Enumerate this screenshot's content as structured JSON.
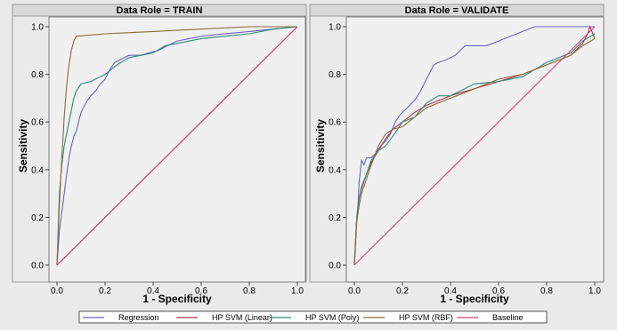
{
  "chart_data": [
    {
      "type": "line",
      "title": "Data Role = TRAIN",
      "xlabel": "1 - Specificity",
      "ylabel": "Sensitivity",
      "xlim": [
        0,
        1
      ],
      "ylim": [
        0,
        1
      ],
      "xticks": [
        "0.0",
        "0.2",
        "0.4",
        "0.6",
        "0.8",
        "1.0"
      ],
      "yticks": [
        "0.0",
        "0.2",
        "0.4",
        "0.6",
        "0.8",
        "1.0"
      ],
      "grid": false,
      "series": [
        {
          "name": "Regression",
          "color": "#6a64c2",
          "x": [
            0,
            0.01,
            0.02,
            0.03,
            0.04,
            0.05,
            0.06,
            0.07,
            0.08,
            0.09,
            0.1,
            0.12,
            0.14,
            0.16,
            0.18,
            0.2,
            0.22,
            0.24,
            0.26,
            0.28,
            0.3,
            0.32,
            0.35,
            0.38,
            0.42,
            0.46,
            0.5,
            0.55,
            0.6,
            0.7,
            0.8,
            0.9,
            1.0
          ],
          "y": [
            0,
            0.14,
            0.22,
            0.3,
            0.38,
            0.45,
            0.5,
            0.54,
            0.56,
            0.6,
            0.64,
            0.68,
            0.71,
            0.73,
            0.76,
            0.78,
            0.82,
            0.85,
            0.86,
            0.87,
            0.88,
            0.88,
            0.88,
            0.89,
            0.9,
            0.92,
            0.94,
            0.95,
            0.96,
            0.97,
            0.98,
            0.99,
            1.0
          ]
        },
        {
          "name": "HP SVM (Linear)",
          "color": "#b5364a",
          "x": [
            0,
            1
          ],
          "y": [
            0,
            1
          ]
        },
        {
          "name": "HP SVM (Poly)",
          "color": "#2e8b7a",
          "x": [
            0,
            0.01,
            0.02,
            0.03,
            0.04,
            0.05,
            0.06,
            0.07,
            0.08,
            0.1,
            0.14,
            0.2,
            0.25,
            0.3,
            0.35,
            0.4,
            0.45,
            0.5,
            0.6,
            0.7,
            0.8,
            0.9,
            1.0
          ],
          "y": [
            0,
            0.3,
            0.42,
            0.5,
            0.55,
            0.6,
            0.65,
            0.7,
            0.73,
            0.76,
            0.77,
            0.8,
            0.84,
            0.87,
            0.88,
            0.89,
            0.92,
            0.93,
            0.95,
            0.96,
            0.97,
            0.99,
            1.0
          ]
        },
        {
          "name": "HP SVM (RBF)",
          "color": "#8b6a3e",
          "x": [
            0,
            0.01,
            0.02,
            0.03,
            0.04,
            0.05,
            0.06,
            0.07,
            0.08,
            0.2,
            0.4,
            0.6,
            0.8,
            1.0
          ],
          "y": [
            0,
            0.25,
            0.45,
            0.62,
            0.75,
            0.84,
            0.9,
            0.94,
            0.96,
            0.97,
            0.98,
            0.99,
            1.0,
            1.0
          ]
        },
        {
          "name": "Baseline",
          "color": "#d9406f",
          "x": [
            0,
            1
          ],
          "y": [
            0,
            1
          ]
        }
      ]
    },
    {
      "type": "line",
      "title": "Data Role = VALIDATE",
      "xlabel": "1 - Specificity",
      "ylabel": "Sensitivity",
      "xlim": [
        0,
        1
      ],
      "ylim": [
        0,
        1
      ],
      "xticks": [
        "0.0",
        "0.2",
        "0.4",
        "0.6",
        "0.8",
        "1.0"
      ],
      "yticks": [
        "0.0",
        "0.2",
        "0.4",
        "0.6",
        "0.8",
        "1.0"
      ],
      "grid": false,
      "series": [
        {
          "name": "Regression",
          "color": "#6a64c2",
          "x": [
            0,
            0.01,
            0.015,
            0.02,
            0.03,
            0.04,
            0.05,
            0.07,
            0.09,
            0.11,
            0.13,
            0.15,
            0.17,
            0.19,
            0.21,
            0.23,
            0.25,
            0.27,
            0.29,
            0.31,
            0.33,
            0.35,
            0.38,
            0.42,
            0.46,
            0.5,
            0.55,
            0.6,
            0.65,
            0.7,
            0.75,
            0.8,
            0.85,
            0.9,
            0.95,
            0.98,
            1.0
          ],
          "y": [
            0,
            0.2,
            0.25,
            0.35,
            0.44,
            0.42,
            0.45,
            0.45,
            0.47,
            0.5,
            0.52,
            0.55,
            0.6,
            0.63,
            0.65,
            0.67,
            0.69,
            0.72,
            0.76,
            0.8,
            0.84,
            0.85,
            0.86,
            0.88,
            0.92,
            0.92,
            0.92,
            0.94,
            0.96,
            0.98,
            1.0,
            1.0,
            1.0,
            1.0,
            1.0,
            1.0,
            1.0
          ]
        },
        {
          "name": "HP SVM (Linear)",
          "color": "#b5364a",
          "x": [
            0,
            0.01,
            0.02,
            0.03,
            0.05,
            0.07,
            0.1,
            0.13,
            0.16,
            0.2,
            0.25,
            0.3,
            0.35,
            0.4,
            0.5,
            0.6,
            0.7,
            0.8,
            0.9,
            0.95,
            0.97,
            0.98,
            1.0
          ],
          "y": [
            0,
            0.2,
            0.28,
            0.32,
            0.38,
            0.43,
            0.48,
            0.53,
            0.57,
            0.6,
            0.64,
            0.67,
            0.69,
            0.71,
            0.74,
            0.77,
            0.8,
            0.84,
            0.88,
            0.93,
            0.97,
            1.0,
            0.95
          ]
        },
        {
          "name": "HP SVM (Poly)",
          "color": "#2e8b7a",
          "x": [
            0,
            0.01,
            0.02,
            0.03,
            0.05,
            0.07,
            0.1,
            0.13,
            0.16,
            0.2,
            0.25,
            0.3,
            0.35,
            0.4,
            0.5,
            0.6,
            0.7,
            0.8,
            0.9,
            0.95,
            1.0
          ],
          "y": [
            0,
            0.2,
            0.28,
            0.33,
            0.38,
            0.44,
            0.48,
            0.5,
            0.54,
            0.6,
            0.62,
            0.68,
            0.71,
            0.71,
            0.76,
            0.77,
            0.79,
            0.85,
            0.89,
            0.94,
            0.97
          ]
        },
        {
          "name": "HP SVM (RBF)",
          "color": "#8b6a3e",
          "x": [
            0,
            0.01,
            0.02,
            0.03,
            0.05,
            0.07,
            0.1,
            0.13,
            0.16,
            0.2,
            0.25,
            0.3,
            0.35,
            0.4,
            0.5,
            0.6,
            0.7,
            0.8,
            0.9,
            0.95,
            1.0
          ],
          "y": [
            0,
            0.18,
            0.25,
            0.3,
            0.36,
            0.42,
            0.5,
            0.55,
            0.57,
            0.58,
            0.62,
            0.66,
            0.68,
            0.7,
            0.74,
            0.78,
            0.8,
            0.84,
            0.88,
            0.92,
            0.95
          ]
        },
        {
          "name": "Baseline",
          "color": "#d9406f",
          "x": [
            0,
            1
          ],
          "y": [
            0,
            1
          ]
        }
      ]
    }
  ],
  "legend": {
    "position": "bottom",
    "items": [
      {
        "label": "Regression",
        "color": "#6a64c2"
      },
      {
        "label": "HP SVM (Linear)",
        "color": "#b5364a"
      },
      {
        "label": "HP SVM (Poly)",
        "color": "#2e8b7a"
      },
      {
        "label": "HP SVM (RBF)",
        "color": "#8b6a3e"
      },
      {
        "label": "Baseline",
        "color": "#d9406f"
      }
    ]
  }
}
